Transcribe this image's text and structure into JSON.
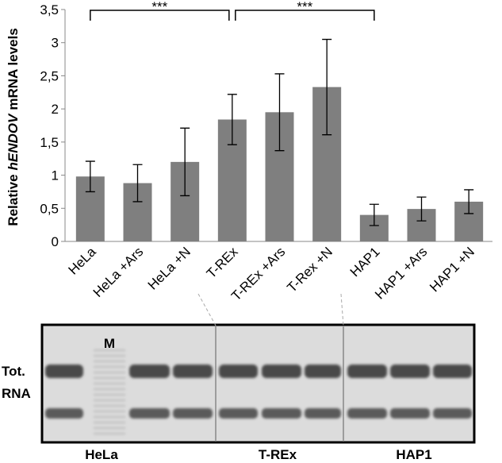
{
  "chart_data": {
    "type": "bar",
    "y_label_parts": [
      "Relative",
      "hENDOV",
      "mRNA levels"
    ],
    "categories": [
      "HeLa",
      "HeLa +Ars",
      "HeLa +N",
      "T-REx",
      "T-REx +Ars",
      "T-Rex +N",
      "HAP1",
      "HAP1 +Ars",
      "HAP1 +N"
    ],
    "series": [
      {
        "color": "#7f7f7f",
        "values": [
          0.98,
          0.88,
          1.2,
          1.84,
          1.95,
          2.33,
          0.4,
          0.49,
          0.6
        ],
        "errors": [
          0.23,
          0.28,
          0.51,
          0.38,
          0.58,
          0.72,
          0.16,
          0.18,
          0.18
        ]
      }
    ],
    "ylim": [
      0,
      3.5
    ],
    "yticks": [
      0,
      {
        "value": 0.5,
        "label": "0,5"
      },
      1,
      {
        "value": 1.5,
        "label": "1,5"
      },
      2,
      {
        "value": 2.5,
        "label": "2,5"
      },
      3,
      {
        "value": 3.5,
        "label": "3,5"
      }
    ],
    "annotations": [
      {
        "text": "***",
        "from": 0,
        "to": 3
      },
      {
        "text": "***",
        "from": 3,
        "to": 6
      }
    ]
  },
  "gel": {
    "lane_label": "M",
    "row_label": [
      "Tot.",
      "RNA"
    ],
    "groups": [
      "HeLa",
      "T-REx",
      "HAP1"
    ]
  }
}
